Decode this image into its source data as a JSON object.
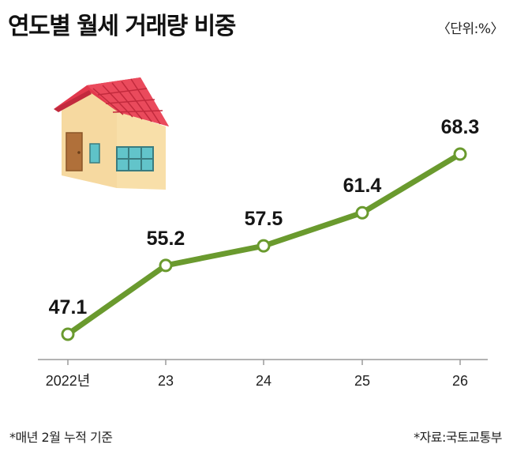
{
  "header": {
    "title": "연도별 월세 거래량 비중",
    "unit": "〈단위:%〉"
  },
  "footer": {
    "note": "*매년 2월 누적 기준",
    "source": "*자료:국토교통부"
  },
  "colors": {
    "line": "#6a9a2e",
    "point_fill": "#ffffff",
    "axis": "#9a9a9a"
  },
  "chart_data": {
    "type": "line",
    "categories": [
      "2022년",
      "23",
      "24",
      "25",
      "26"
    ],
    "series": [
      {
        "values": [
          47.1,
          55.2,
          57.5,
          61.4,
          68.3
        ]
      }
    ],
    "data_labels": [
      "47.1",
      "55.2",
      "57.5",
      "61.4",
      "68.3"
    ],
    "title": "연도별 월세 거래량 비중",
    "xlabel": "",
    "ylabel": "",
    "ylim": [
      44,
      72
    ],
    "grid": false,
    "legend": "none"
  }
}
